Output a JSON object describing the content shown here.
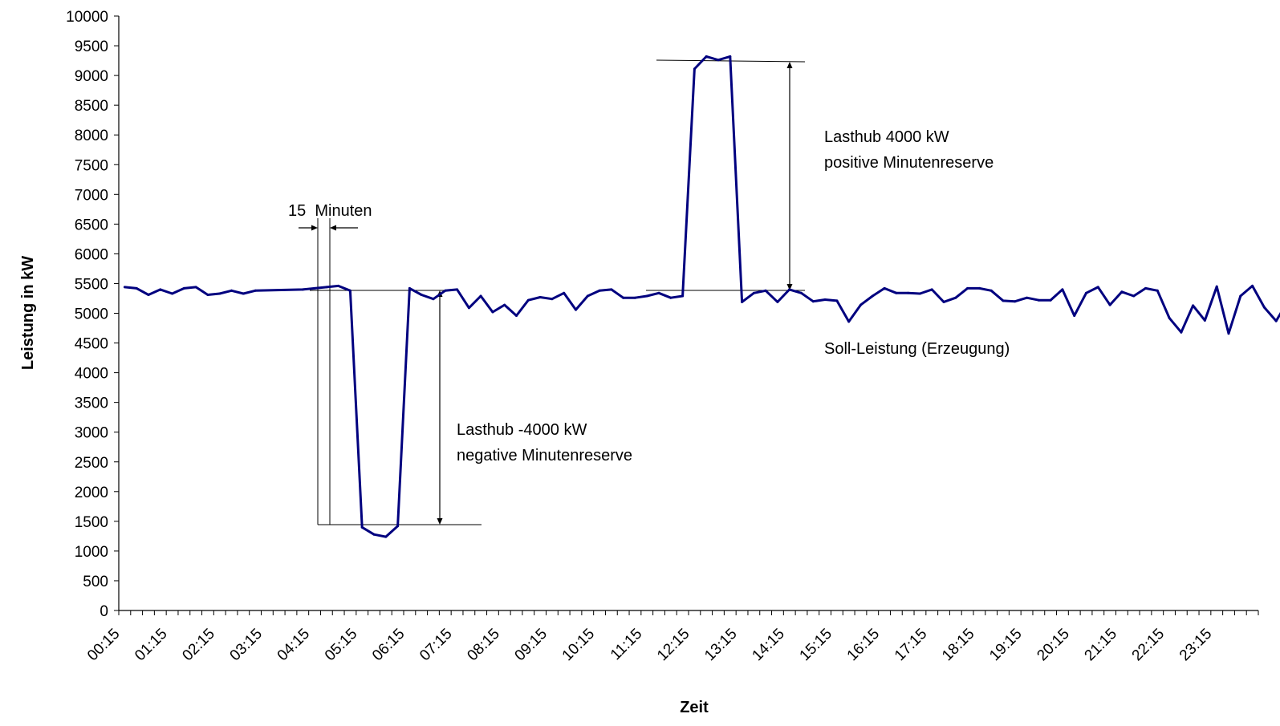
{
  "chart_data": {
    "type": "line",
    "xlabel": "Zeit",
    "ylabel": "Leistung in kW",
    "ylim": [
      0,
      10000
    ],
    "ytick_step": 500,
    "grid": false,
    "legend": "none",
    "line_color": "#00007f",
    "x_tick_labels": [
      "00:15",
      "01:15",
      "02:15",
      "03:15",
      "04:15",
      "05:15",
      "06:15",
      "07:15",
      "08:15",
      "09:15",
      "10:15",
      "11:15",
      "12:15",
      "13:15",
      "14:15",
      "15:15",
      "16:15",
      "17:15",
      "18:15",
      "19:15",
      "20:15",
      "21:15",
      "22:15",
      "23:15"
    ],
    "series": [
      {
        "values": [
          5440,
          5420,
          5310,
          5400,
          5330,
          5420,
          5440,
          5310,
          5330,
          5380,
          5330,
          5380,
          5400,
          5420,
          5440,
          5460,
          5380,
          1400,
          1280,
          1240,
          1420,
          5420,
          5310,
          5240,
          5380,
          5400,
          5090,
          5290,
          5020,
          5140,
          4960,
          5220,
          5270,
          5240,
          5340,
          5060,
          5290,
          5380,
          5400,
          5260,
          5260,
          5290,
          5340,
          5260,
          5290,
          9110,
          9320,
          9260,
          9320,
          5190,
          5340,
          5380,
          5190,
          5400,
          5340,
          5200,
          5230,
          5210,
          4860,
          5140,
          5290,
          5420,
          5340,
          5340,
          5330,
          5400,
          5190,
          5260,
          5420,
          5420,
          5380,
          5210,
          5200,
          5260,
          5220,
          5220,
          5400,
          4960,
          5340,
          5440,
          5140,
          5360,
          5290,
          5420,
          5380,
          4920,
          4680,
          5130,
          4880,
          5450,
          4660,
          5290,
          5460,
          5100,
          4870,
          5210
        ],
        "time_gaps": [
          {
            "after_index": 11,
            "steps": 4
          }
        ]
      }
    ],
    "annotations": {
      "interval_label": "15  Minuten",
      "pos_line1": "Lasthub 4000 kW",
      "pos_line2": "positive Minutenreserve",
      "neg_line1": "Lasthub -4000 kW",
      "neg_line2": "negative Minutenreserve",
      "setpoint": "Soll-Leistung (Erzeugung)"
    }
  }
}
